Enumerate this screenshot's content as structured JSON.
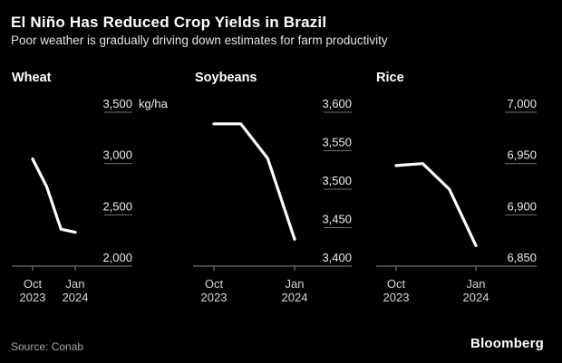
{
  "header": {
    "title": "El Niño Has Reduced Crop Yields in Brazil",
    "subtitle": "Poor weather is gradually driving down estimates for farm productivity"
  },
  "footer": {
    "source": "Source: Conab",
    "brand": "Bloomberg"
  },
  "colors": {
    "background": "#000000",
    "series_line": "#ffffff",
    "grid_tick": "#6f6f6f",
    "axis_line": "#8a8a8a",
    "ytick_label": "#ededed",
    "xtick_label": "#d6d6d6",
    "panel_title": "#ffffff"
  },
  "chart_data": [
    {
      "type": "line",
      "title": "Wheat",
      "unit": "kg/ha",
      "x": [
        "Oct 2023",
        "Nov 2023",
        "Dec 2023",
        "Jan 2024"
      ],
      "values": [
        3045,
        2770,
        2360,
        2330
      ],
      "yticks": [
        2000,
        2500,
        3000,
        3500
      ],
      "ylim": [
        2000,
        3500
      ],
      "xticks": [
        [
          "Oct",
          "2023"
        ],
        [
          "Jan",
          "2024"
        ]
      ],
      "grid": "right-stub-ticks",
      "legend": "none"
    },
    {
      "type": "line",
      "title": "Soybeans",
      "x": [
        "Oct 2023",
        "Nov 2023",
        "Dec 2023",
        "Jan 2024"
      ],
      "values": [
        3585,
        3585,
        3540,
        3435
      ],
      "yticks": [
        3400,
        3450,
        3500,
        3550,
        3600
      ],
      "ylim": [
        3400,
        3600
      ],
      "xticks": [
        [
          "Oct",
          "2023"
        ],
        [
          "Jan",
          "2024"
        ]
      ],
      "grid": "right-stub-ticks",
      "legend": "none"
    },
    {
      "type": "line",
      "title": "Rice",
      "x": [
        "Oct 2023",
        "Nov 2023",
        "Dec 2023",
        "Jan 2024"
      ],
      "values": [
        6948,
        6950,
        6925,
        6870
      ],
      "yticks": [
        6850,
        6900,
        6950,
        7000
      ],
      "ylim": [
        6850,
        7000
      ],
      "xticks": [
        [
          "Oct",
          "2023"
        ],
        [
          "Jan",
          "2024"
        ]
      ],
      "grid": "right-stub-ticks",
      "legend": "none"
    }
  ]
}
